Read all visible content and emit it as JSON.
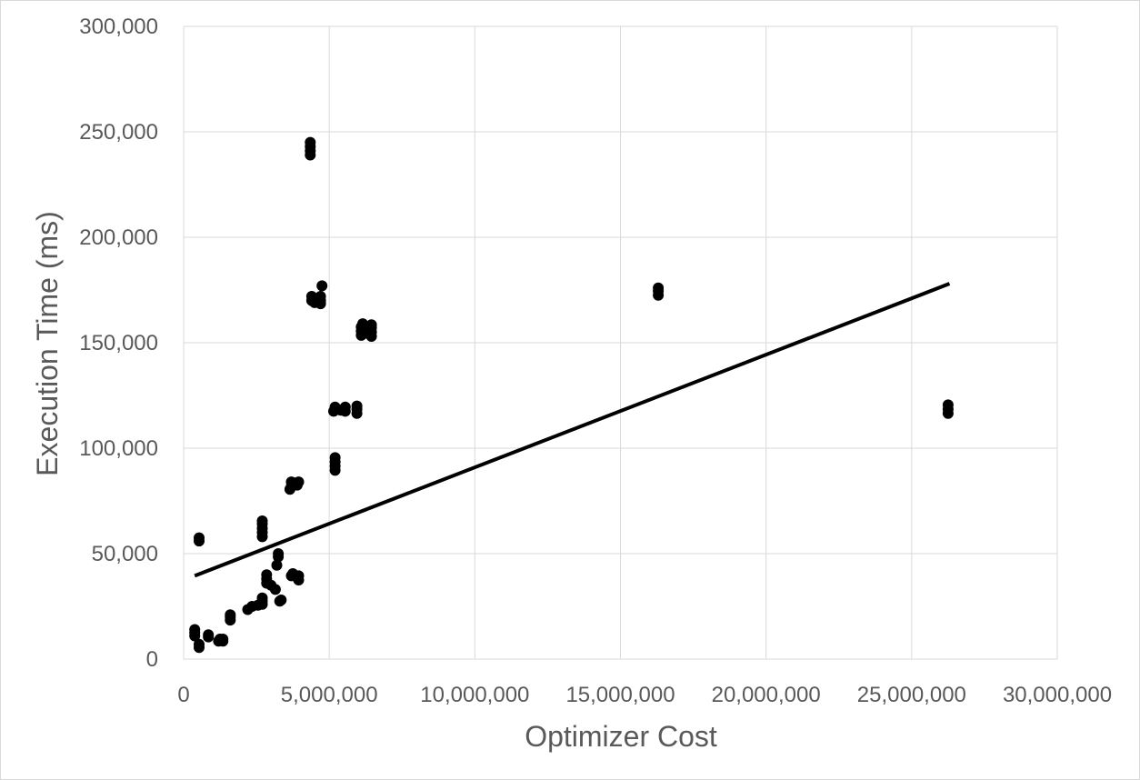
{
  "chart_data": {
    "type": "scatter",
    "title": "",
    "xlabel": "Optimizer Cost",
    "ylabel": "Execution Time (ms)",
    "xlim": [
      0,
      30000000
    ],
    "ylim": [
      0,
      300000
    ],
    "x_ticks": [
      0,
      5000000,
      10000000,
      15000000,
      20000000,
      25000000,
      30000000
    ],
    "y_ticks": [
      0,
      50000,
      100000,
      150000,
      200000,
      250000,
      300000
    ],
    "x_tick_labels": [
      "0",
      "5,000,000",
      "10,000,000",
      "15,000,000",
      "20,000,000",
      "25,000,000",
      "30,000,000"
    ],
    "y_tick_labels": [
      "0",
      "50,000",
      "100,000",
      "150,000",
      "200,000",
      "250,000",
      "300,000"
    ],
    "grid": true,
    "legend": "none",
    "marker_color": "#000000",
    "trendline": {
      "type": "linear",
      "color": "#000000",
      "points": [
        [
          380000,
          39500
        ],
        [
          26300000,
          178000
        ]
      ]
    },
    "points": [
      [
        380000,
        11000
      ],
      [
        380000,
        12500
      ],
      [
        380000,
        14000
      ],
      [
        530000,
        5500
      ],
      [
        530000,
        7000
      ],
      [
        530000,
        56000
      ],
      [
        530000,
        57500
      ],
      [
        850000,
        10500
      ],
      [
        850000,
        11500
      ],
      [
        1200000,
        8500
      ],
      [
        1250000,
        9500
      ],
      [
        1350000,
        8500
      ],
      [
        1350000,
        9500
      ],
      [
        1600000,
        18500
      ],
      [
        1600000,
        20000
      ],
      [
        1600000,
        21000
      ],
      [
        2200000,
        23500
      ],
      [
        2350000,
        25000
      ],
      [
        2550000,
        25500
      ],
      [
        2700000,
        26000
      ],
      [
        2700000,
        27500
      ],
      [
        2700000,
        29000
      ],
      [
        2700000,
        58000
      ],
      [
        2700000,
        60000
      ],
      [
        2700000,
        62000
      ],
      [
        2700000,
        64000
      ],
      [
        2700000,
        65500
      ],
      [
        2850000,
        36000
      ],
      [
        2850000,
        38000
      ],
      [
        2850000,
        40000
      ],
      [
        3000000,
        35000
      ],
      [
        3150000,
        33000
      ],
      [
        3200000,
        44500
      ],
      [
        3250000,
        48500
      ],
      [
        3250000,
        50000
      ],
      [
        3300000,
        27500
      ],
      [
        3350000,
        28000
      ],
      [
        3700000,
        39500
      ],
      [
        3750000,
        40500
      ],
      [
        3800000,
        39500
      ],
      [
        3650000,
        80500
      ],
      [
        3700000,
        82000
      ],
      [
        3700000,
        84000
      ],
      [
        3800000,
        83500
      ],
      [
        3900000,
        82500
      ],
      [
        3950000,
        84000
      ],
      [
        3950000,
        37500
      ],
      [
        3950000,
        39500
      ],
      [
        4350000,
        239000
      ],
      [
        4350000,
        241000
      ],
      [
        4350000,
        243000
      ],
      [
        4350000,
        245000
      ],
      [
        4400000,
        170000
      ],
      [
        4400000,
        172000
      ],
      [
        4500000,
        169000
      ],
      [
        4500000,
        171000
      ],
      [
        4700000,
        168500
      ],
      [
        4700000,
        170000
      ],
      [
        4700000,
        172000
      ],
      [
        4750000,
        177000
      ],
      [
        5200000,
        89500
      ],
      [
        5200000,
        91500
      ],
      [
        5200000,
        93500
      ],
      [
        5200000,
        95500
      ],
      [
        5150000,
        117500
      ],
      [
        5200000,
        119500
      ],
      [
        5400000,
        118000
      ],
      [
        5550000,
        117500
      ],
      [
        5550000,
        119500
      ],
      [
        5950000,
        116500
      ],
      [
        5950000,
        118500
      ],
      [
        5950000,
        120000
      ],
      [
        6100000,
        153500
      ],
      [
        6100000,
        155500
      ],
      [
        6100000,
        157500
      ],
      [
        6150000,
        159000
      ],
      [
        6300000,
        154500
      ],
      [
        6300000,
        156500
      ],
      [
        6450000,
        153000
      ],
      [
        6450000,
        155000
      ],
      [
        6450000,
        157000
      ],
      [
        6450000,
        158500
      ],
      [
        16300000,
        172500
      ],
      [
        16300000,
        174500
      ],
      [
        16300000,
        176000
      ],
      [
        26250000,
        116500
      ],
      [
        26250000,
        118500
      ],
      [
        26250000,
        120500
      ]
    ]
  }
}
